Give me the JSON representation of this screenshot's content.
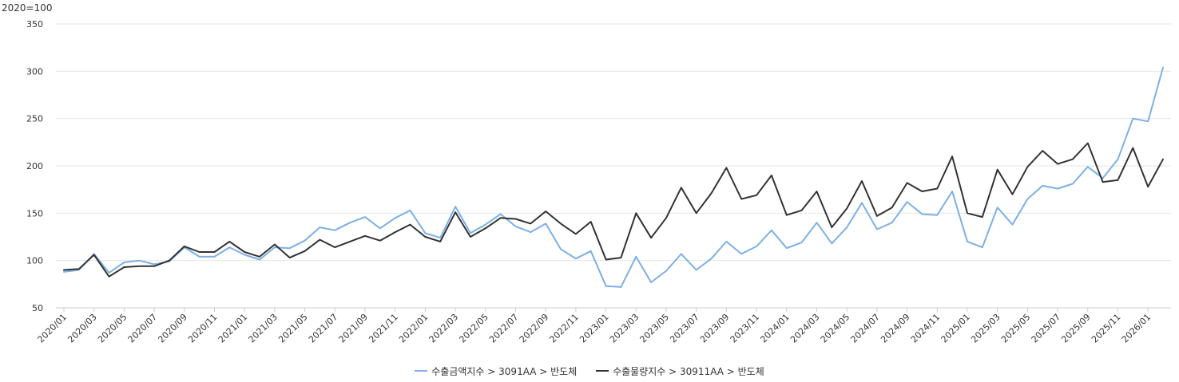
{
  "unit_label": "2020=100",
  "colors": {
    "series1": "#7cb0e6",
    "series2": "#333333",
    "grid": "#e6e6e6",
    "axis": "#cccccc"
  },
  "chart_data": {
    "type": "line",
    "ylim": [
      50,
      350
    ],
    "yticks": [
      50,
      100,
      150,
      200,
      250,
      300,
      350
    ],
    "x": [
      "2020/01",
      "2020/02",
      "2020/03",
      "2020/04",
      "2020/05",
      "2020/06",
      "2020/07",
      "2020/08",
      "2020/09",
      "2020/10",
      "2020/11",
      "2020/12",
      "2021/01",
      "2021/02",
      "2021/03",
      "2021/04",
      "2021/05",
      "2021/06",
      "2021/07",
      "2021/08",
      "2021/09",
      "2021/10",
      "2021/11",
      "2021/12",
      "2022/01",
      "2022/02",
      "2022/03",
      "2022/04",
      "2022/05",
      "2022/06",
      "2022/07",
      "2022/08",
      "2022/09",
      "2022/10",
      "2022/11",
      "2022/12",
      "2023/01",
      "2023/02",
      "2023/03",
      "2023/04",
      "2023/05",
      "2023/06",
      "2023/07",
      "2023/08",
      "2023/09",
      "2023/10",
      "2023/11",
      "2023/12",
      "2024/01",
      "2024/02",
      "2024/03",
      "2024/04",
      "2024/05",
      "2024/06",
      "2024/07",
      "2024/08",
      "2024/09",
      "2024/10",
      "2024/11",
      "2024/12",
      "2025/01",
      "2025/02",
      "2025/03",
      "2025/04",
      "2025/05",
      "2025/06",
      "2025/07",
      "2025/08",
      "2025/09",
      "2025/10",
      "2025/11",
      "2025/12",
      "2026/01",
      "2026/02"
    ],
    "xticks": [
      "2020/01",
      "2020/03",
      "2020/05",
      "2020/07",
      "2020/09",
      "2020/11",
      "2021/01",
      "2021/03",
      "2021/05",
      "2021/07",
      "2021/09",
      "2021/11",
      "2022/01",
      "2022/03",
      "2022/05",
      "2022/07",
      "2022/09",
      "2022/11",
      "2023/01",
      "2023/03",
      "2023/05",
      "2023/07",
      "2023/09",
      "2023/11",
      "2024/01",
      "2024/03",
      "2024/05",
      "2024/07",
      "2024/09",
      "2024/11",
      "2025/01",
      "2025/03",
      "2025/05",
      "2025/07",
      "2025/09",
      "2025/11",
      "2026/01"
    ],
    "series": [
      {
        "name": "수출금액지수 > 3091AA > 반도체",
        "color": "#7cb0e6",
        "values": [
          88,
          90,
          107,
          87,
          98,
          100,
          96,
          99,
          114,
          104,
          104,
          114,
          106,
          101,
          114,
          113,
          121,
          135,
          132,
          140,
          146,
          134,
          145,
          153,
          129,
          124,
          157,
          129,
          138,
          149,
          136,
          130,
          139,
          112,
          102,
          110,
          73,
          72,
          104,
          77,
          89,
          107,
          90,
          102,
          120,
          107,
          115,
          132,
          113,
          119,
          140,
          118,
          135,
          161,
          133,
          140,
          162,
          149,
          148,
          173,
          120,
          114,
          156,
          138,
          165,
          179,
          176,
          181,
          199,
          187,
          207,
          250,
          247,
          304
        ]
      },
      {
        "name": "수출물량지수 > 30911AA > 반도체",
        "color": "#333333",
        "values": [
          90,
          91,
          106,
          83,
          93,
          94,
          94,
          100,
          115,
          109,
          109,
          120,
          109,
          104,
          117,
          103,
          110,
          122,
          114,
          120,
          126,
          121,
          130,
          138,
          125,
          120,
          151,
          125,
          134,
          145,
          144,
          139,
          152,
          139,
          128,
          141,
          101,
          103,
          150,
          124,
          145,
          177,
          150,
          171,
          198,
          165,
          169,
          190,
          148,
          153,
          173,
          135,
          155,
          184,
          147,
          156,
          182,
          173,
          176,
          210,
          150,
          146,
          196,
          170,
          199,
          216,
          202,
          207,
          224,
          183,
          185,
          219,
          178,
          207
        ]
      }
    ]
  },
  "legend": {
    "items": [
      {
        "label": "수출금액지수 > 3091AA > 반도체",
        "color": "#7cb0e6"
      },
      {
        "label": "수출물량지수 > 30911AA > 반도체",
        "color": "#333333"
      }
    ]
  }
}
